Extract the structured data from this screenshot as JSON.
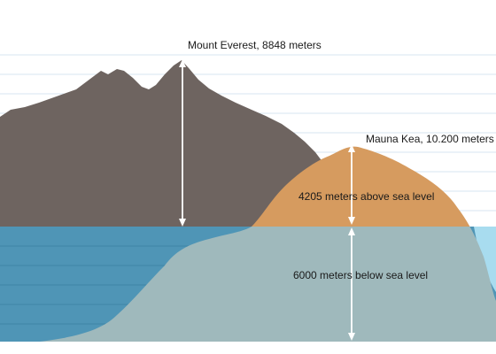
{
  "labels": {
    "everest": "Mount Everest, 8848 meters",
    "mauna_kea": "Mauna Kea, 10.200 meters",
    "above": "4205 meters above sea level",
    "below": "6000 meters below sea level"
  },
  "colors": {
    "sky": "#ffffff",
    "sky_lines": "#d7e6f0",
    "ocean": "#4f95b6",
    "ocean_lines": "#3f85a6",
    "everest": "#6e6460",
    "mauna_kea_above": "#d69b5f",
    "mauna_kea_below": "#9fb9bc",
    "shore": "#a8dcef",
    "arrow": "#ffffff"
  }
}
